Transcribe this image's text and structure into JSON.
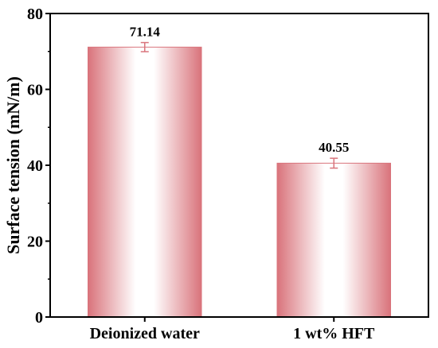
{
  "chart_data": {
    "type": "bar",
    "categories": [
      "Deionized water",
      "1 wt% HFT"
    ],
    "values": [
      71.14,
      40.55
    ],
    "error": [
      1.2,
      1.3
    ],
    "data_labels": [
      "71.14",
      "40.55"
    ],
    "xlabel": "",
    "ylabel": "Surface tension (mN/m)",
    "ylim": [
      0,
      80
    ],
    "yticks": [
      0,
      20,
      40,
      60,
      80
    ],
    "grid": false,
    "colors": {
      "bar_edge": "#d9747c",
      "bar_center": "#ffffff",
      "error_bar": "#d9747c",
      "axis": "#000000"
    }
  }
}
